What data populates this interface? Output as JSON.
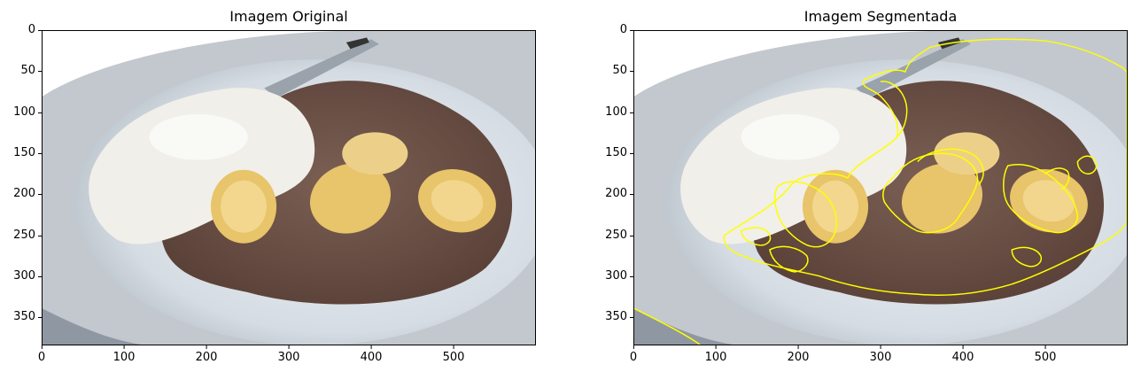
{
  "panels": [
    {
      "title": "Imagem Original",
      "y_ticks": [
        "0",
        "50",
        "100",
        "150",
        "200",
        "250",
        "300",
        "350"
      ],
      "x_ticks": [
        "0",
        "100",
        "200",
        "300",
        "400",
        "500"
      ]
    },
    {
      "title": "Imagem Segmentada",
      "y_ticks": [
        "0",
        "50",
        "100",
        "150",
        "200",
        "250",
        "300",
        "350"
      ],
      "x_ticks": [
        "0",
        "100",
        "200",
        "300",
        "400",
        "500"
      ]
    }
  ],
  "image_extent": {
    "width": 600,
    "height": 384
  },
  "y_tick_values": [
    0,
    50,
    100,
    150,
    200,
    250,
    300,
    350
  ],
  "x_tick_values": [
    0,
    100,
    200,
    300,
    400,
    500
  ],
  "colors": {
    "plate": "#d8dde3",
    "rice": "#f1efe9",
    "meat": "#6e5449",
    "banana": "#e8c46a",
    "contour": "#ffff00"
  }
}
